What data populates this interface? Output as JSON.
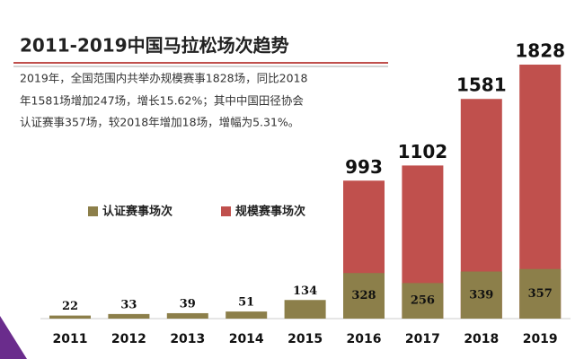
{
  "chart_data": {
    "type": "bar",
    "title": "2011-2019中国马拉松场次趋势",
    "annotations": [
      "2019年，全国范围内共举办规模赛事1828场，同比2018",
      "年1581场增加247场，增长15.62%；其中中国田径协会",
      "认证赛事357场，较2018年增加18场，增幅为5.31%。"
    ],
    "categories": [
      "2011",
      "2012",
      "2013",
      "2014",
      "2015",
      "2016",
      "2017",
      "2018",
      "2019"
    ],
    "series": [
      {
        "name": "认证赛事场次",
        "color": "#8c7f4a",
        "values": [
          22,
          33,
          39,
          51,
          134,
          328,
          256,
          339,
          357
        ]
      },
      {
        "name": "规模赛事场次",
        "color": "#c0504d",
        "values": [
          null,
          null,
          null,
          null,
          null,
          993,
          1102,
          1581,
          1828
        ]
      }
    ]
  }
}
